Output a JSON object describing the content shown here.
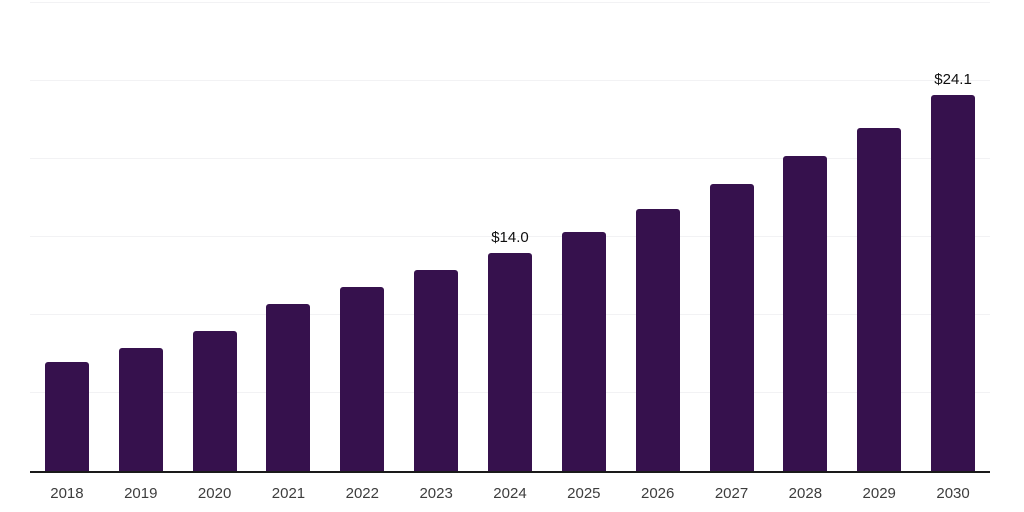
{
  "chart_data": {
    "type": "bar",
    "title": "",
    "xlabel": "",
    "ylabel": "",
    "categories": [
      "2018",
      "2019",
      "2020",
      "2021",
      "2022",
      "2023",
      "2024",
      "2025",
      "2026",
      "2027",
      "2028",
      "2029",
      "2030"
    ],
    "values": [
      7.0,
      7.9,
      9.0,
      10.7,
      11.8,
      12.9,
      14.0,
      15.3,
      16.8,
      18.4,
      20.2,
      22.0,
      24.1
    ],
    "value_labels": {
      "2024": "$14.0",
      "2030": "$24.1"
    },
    "ylim": [
      0,
      30
    ],
    "grid_values": [
      5,
      10,
      15,
      20,
      25,
      30
    ],
    "grid_on": true,
    "legend": "none",
    "colors": {
      "bar": "#36114D",
      "grid": "#f2f2f4",
      "axis": "#1a1a1a",
      "tick_text": "#3d3d3d",
      "label_text": "#0f0f0f"
    }
  }
}
